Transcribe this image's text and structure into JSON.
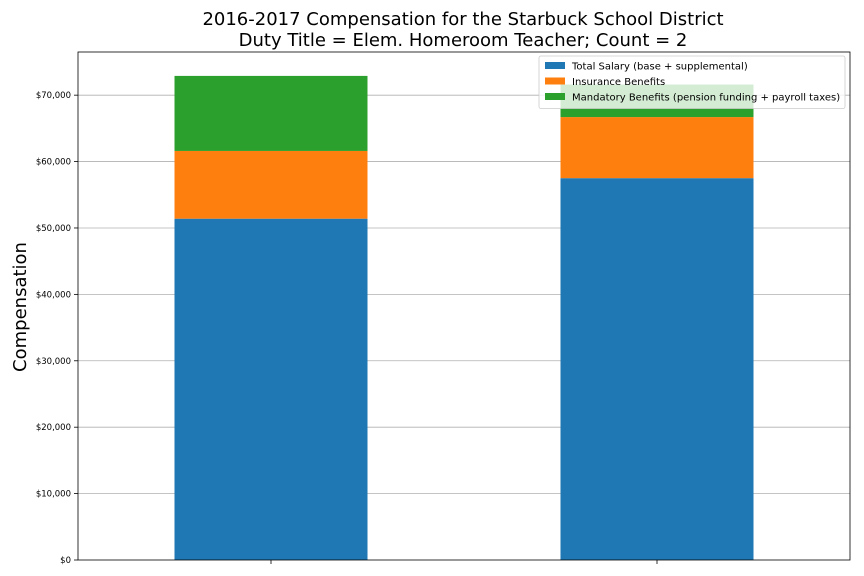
{
  "chart_data": {
    "type": "bar",
    "stacked": true,
    "title_line1": "2016-2017 Compensation for the Starbuck School District",
    "title_line2": "Duty Title = Elem. Homeroom Teacher; Count = 2",
    "xlabel": "",
    "ylabel": "Compensation",
    "ylim": [
      0,
      76500
    ],
    "yticks": [
      0,
      10000,
      20000,
      30000,
      40000,
      50000,
      60000,
      70000
    ],
    "ytick_labels": [
      "$0",
      "$10,000",
      "$20,000",
      "$30,000",
      "$40,000",
      "$50,000",
      "$60,000",
      "$70,000"
    ],
    "grid": "y",
    "legend_position": "top-right",
    "categories": [
      "",
      ""
    ],
    "series": [
      {
        "name": "Total Salary (base + supplemental)",
        "color": "#1f77b4",
        "values": [
          51400,
          57500
        ]
      },
      {
        "name": "Insurance Benefits",
        "color": "#ff7f0e",
        "values": [
          10200,
          9200
        ]
      },
      {
        "name": "Mandatory Benefits (pension funding + payroll taxes)",
        "color": "#2ca02c",
        "values": [
          11300,
          4900
        ]
      }
    ]
  }
}
